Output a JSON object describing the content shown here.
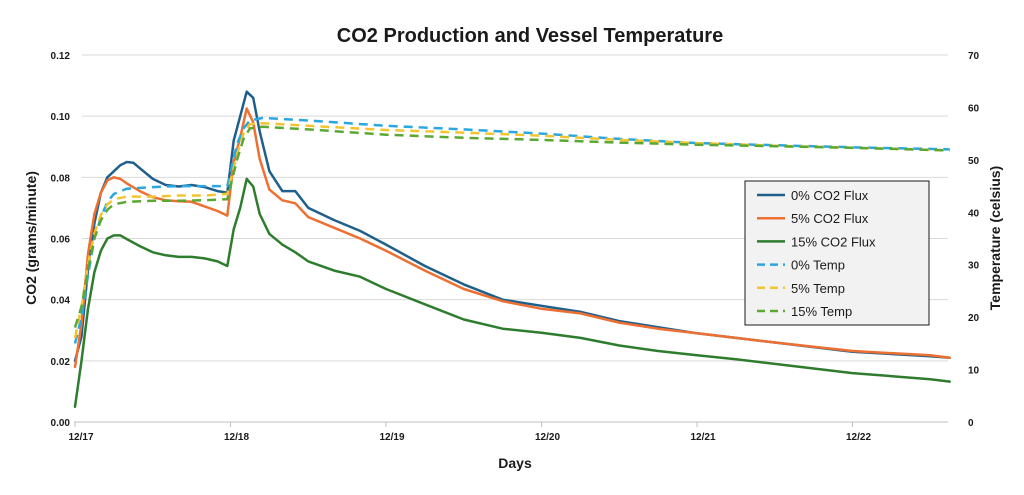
{
  "chart_data": {
    "type": "line",
    "title": "CO2 Production and Vessel Temperature",
    "xlabel": "Days",
    "ylabel": "CO2 (grams/minute)",
    "y2label": "Temperature (celsius)",
    "x_ticks": [
      "12/17",
      "12/18",
      "12/19",
      "12/20",
      "12/21",
      "12/22"
    ],
    "y_ticks": [
      "0.00",
      "0.02",
      "0.04",
      "0.06",
      "0.08",
      "0.10",
      "0.12"
    ],
    "y2_ticks": [
      "0",
      "10",
      "20",
      "30",
      "40",
      "50",
      "60",
      "70"
    ],
    "xlim": [
      "12/17 00:00",
      "12/22 15:00"
    ],
    "ylim": [
      0,
      0.12
    ],
    "y2lim": [
      0,
      70
    ],
    "grid": "horizontal",
    "legend_position": "right",
    "series": [
      {
        "name": "0% CO2 Flux",
        "axis": "left",
        "style": "solid",
        "color": "#1f5f8b",
        "points": [
          [
            "12/17 00:00",
            0.02
          ],
          [
            "12/17 01:00",
            0.028
          ],
          [
            "12/17 02:00",
            0.05
          ],
          [
            "12/17 03:00",
            0.065
          ],
          [
            "12/17 04:00",
            0.075
          ],
          [
            "12/17 05:00",
            0.08
          ],
          [
            "12/17 06:00",
            0.082
          ],
          [
            "12/17 07:00",
            0.084
          ],
          [
            "12/17 08:00",
            0.085
          ],
          [
            "12/17 09:00",
            0.0848
          ],
          [
            "12/17 10:00",
            0.083
          ],
          [
            "12/17 12:00",
            0.0795
          ],
          [
            "12/17 14:00",
            0.0775
          ],
          [
            "12/17 16:00",
            0.077
          ],
          [
            "12/17 18:00",
            0.0775
          ],
          [
            "12/17 20:00",
            0.0768
          ],
          [
            "12/17 22:00",
            0.0755
          ],
          [
            "12/17 23:30",
            0.075
          ],
          [
            "12/18 00:30",
            0.092
          ],
          [
            "12/18 01:30",
            0.1
          ],
          [
            "12/18 02:30",
            0.108
          ],
          [
            "12/18 03:30",
            0.106
          ],
          [
            "12/18 04:30",
            0.095
          ],
          [
            "12/18 06:00",
            0.082
          ],
          [
            "12/18 08:00",
            0.0755
          ],
          [
            "12/18 10:00",
            0.0755
          ],
          [
            "12/18 12:00",
            0.07
          ],
          [
            "12/18 16:00",
            0.066
          ],
          [
            "12/18 20:00",
            0.0625
          ],
          [
            "12/19 00:00",
            0.058
          ],
          [
            "12/19 06:00",
            0.051
          ],
          [
            "12/19 12:00",
            0.045
          ],
          [
            "12/19 18:00",
            0.04
          ],
          [
            "12/20 00:00",
            0.038
          ],
          [
            "12/20 06:00",
            0.036
          ],
          [
            "12/20 12:00",
            0.033
          ],
          [
            "12/20 18:00",
            0.031
          ],
          [
            "12/21 00:00",
            0.029
          ],
          [
            "12/21 06:00",
            0.0275
          ],
          [
            "12/21 12:00",
            0.026
          ],
          [
            "12/22 00:00",
            0.023
          ],
          [
            "12/22 12:00",
            0.0215
          ],
          [
            "12/22 15:00",
            0.021
          ]
        ]
      },
      {
        "name": "5% CO2 Flux",
        "axis": "left",
        "style": "solid",
        "color": "#ed7032",
        "points": [
          [
            "12/17 00:00",
            0.018
          ],
          [
            "12/17 01:00",
            0.032
          ],
          [
            "12/17 02:00",
            0.055
          ],
          [
            "12/17 03:00",
            0.068
          ],
          [
            "12/17 04:00",
            0.075
          ],
          [
            "12/17 05:00",
            0.079
          ],
          [
            "12/17 06:00",
            0.08
          ],
          [
            "12/17 07:00",
            0.0795
          ],
          [
            "12/17 08:00",
            0.078
          ],
          [
            "12/17 10:00",
            0.0755
          ],
          [
            "12/17 12:00",
            0.0735
          ],
          [
            "12/17 14:00",
            0.0725
          ],
          [
            "12/17 16:00",
            0.0722
          ],
          [
            "12/17 18:00",
            0.072
          ],
          [
            "12/17 20:00",
            0.0705
          ],
          [
            "12/17 22:00",
            0.069
          ],
          [
            "12/17 23:30",
            0.0675
          ],
          [
            "12/18 00:30",
            0.085
          ],
          [
            "12/18 01:30",
            0.093
          ],
          [
            "12/18 02:30",
            0.1025
          ],
          [
            "12/18 03:30",
            0.098
          ],
          [
            "12/18 04:30",
            0.086
          ],
          [
            "12/18 06:00",
            0.076
          ],
          [
            "12/18 08:00",
            0.0725
          ],
          [
            "12/18 10:00",
            0.0715
          ],
          [
            "12/18 12:00",
            0.067
          ],
          [
            "12/18 16:00",
            0.0635
          ],
          [
            "12/18 20:00",
            0.06
          ],
          [
            "12/19 00:00",
            0.056
          ],
          [
            "12/19 06:00",
            0.0495
          ],
          [
            "12/19 12:00",
            0.0435
          ],
          [
            "12/19 18:00",
            0.0395
          ],
          [
            "12/20 00:00",
            0.037
          ],
          [
            "12/20 06:00",
            0.0355
          ],
          [
            "12/20 12:00",
            0.0325
          ],
          [
            "12/20 18:00",
            0.0305
          ],
          [
            "12/21 00:00",
            0.029
          ],
          [
            "12/21 06:00",
            0.0275
          ],
          [
            "12/21 12:00",
            0.026
          ],
          [
            "12/22 00:00",
            0.0232
          ],
          [
            "12/22 12:00",
            0.0218
          ],
          [
            "12/22 15:00",
            0.021
          ]
        ]
      },
      {
        "name": "15% CO2 Flux",
        "axis": "left",
        "style": "solid",
        "color": "#2e7d2e",
        "points": [
          [
            "12/17 00:00",
            0.005
          ],
          [
            "12/17 01:00",
            0.02
          ],
          [
            "12/17 02:00",
            0.037
          ],
          [
            "12/17 03:00",
            0.049
          ],
          [
            "12/17 04:00",
            0.056
          ],
          [
            "12/17 05:00",
            0.06
          ],
          [
            "12/17 06:00",
            0.061
          ],
          [
            "12/17 07:00",
            0.061
          ],
          [
            "12/17 08:00",
            0.0598
          ],
          [
            "12/17 10:00",
            0.0575
          ],
          [
            "12/17 12:00",
            0.0555
          ],
          [
            "12/17 14:00",
            0.0545
          ],
          [
            "12/17 16:00",
            0.054
          ],
          [
            "12/17 18:00",
            0.054
          ],
          [
            "12/17 20:00",
            0.0535
          ],
          [
            "12/17 22:00",
            0.0525
          ],
          [
            "12/17 23:30",
            0.051
          ],
          [
            "12/18 00:30",
            0.063
          ],
          [
            "12/18 01:30",
            0.07
          ],
          [
            "12/18 02:30",
            0.0795
          ],
          [
            "12/18 03:30",
            0.077
          ],
          [
            "12/18 04:30",
            0.068
          ],
          [
            "12/18 06:00",
            0.0615
          ],
          [
            "12/18 08:00",
            0.058
          ],
          [
            "12/18 10:00",
            0.0555
          ],
          [
            "12/18 12:00",
            0.0525
          ],
          [
            "12/18 16:00",
            0.0495
          ],
          [
            "12/18 20:00",
            0.0475
          ],
          [
            "12/19 00:00",
            0.0435
          ],
          [
            "12/19 06:00",
            0.0385
          ],
          [
            "12/19 12:00",
            0.0335
          ],
          [
            "12/19 18:00",
            0.0305
          ],
          [
            "12/20 00:00",
            0.0292
          ],
          [
            "12/20 06:00",
            0.0275
          ],
          [
            "12/20 12:00",
            0.025
          ],
          [
            "12/20 18:00",
            0.0232
          ],
          [
            "12/21 00:00",
            0.0218
          ],
          [
            "12/21 06:00",
            0.0205
          ],
          [
            "12/21 12:00",
            0.019
          ],
          [
            "12/22 00:00",
            0.016
          ],
          [
            "12/22 12:00",
            0.014
          ],
          [
            "12/22 15:00",
            0.0132
          ]
        ]
      },
      {
        "name": "0% Temp",
        "axis": "right",
        "style": "dashed",
        "color": "#2aa7e0",
        "points": [
          [
            "12/17 00:00",
            15
          ],
          [
            "12/17 01:00",
            20
          ],
          [
            "12/17 02:00",
            28
          ],
          [
            "12/17 03:00",
            35
          ],
          [
            "12/17 04:00",
            39
          ],
          [
            "12/17 05:00",
            42
          ],
          [
            "12/17 06:00",
            43.5
          ],
          [
            "12/17 08:00",
            44.5
          ],
          [
            "12/17 12:00",
            44.8
          ],
          [
            "12/17 16:00",
            45
          ],
          [
            "12/17 20:00",
            45
          ],
          [
            "12/17 23:30",
            45
          ],
          [
            "12/18 01:00",
            53
          ],
          [
            "12/18 02:00",
            56
          ],
          [
            "12/18 03:00",
            57.5
          ],
          [
            "12/18 05:00",
            58
          ],
          [
            "12/18 12:00",
            57.5
          ],
          [
            "12/19 00:00",
            56.5
          ],
          [
            "12/19 12:00",
            55.8
          ],
          [
            "12/20 00:00",
            55
          ],
          [
            "12/20 12:00",
            54
          ],
          [
            "12/21 00:00",
            53.2
          ],
          [
            "12/21 12:00",
            52.8
          ],
          [
            "12/22 00:00",
            52.4
          ],
          [
            "12/22 15:00",
            52
          ]
        ]
      },
      {
        "name": "5% Temp",
        "axis": "right",
        "style": "dashed",
        "color": "#f4c430",
        "points": [
          [
            "12/17 00:00",
            16
          ],
          [
            "12/17 01:00",
            22
          ],
          [
            "12/17 02:00",
            30
          ],
          [
            "12/17 03:00",
            36
          ],
          [
            "12/17 04:00",
            39.5
          ],
          [
            "12/17 05:00",
            41.5
          ],
          [
            "12/17 06:00",
            42.5
          ],
          [
            "12/17 08:00",
            43
          ],
          [
            "12/17 12:00",
            43
          ],
          [
            "12/17 16:00",
            43.2
          ],
          [
            "12/17 20:00",
            43.2
          ],
          [
            "12/17 23:30",
            43.5
          ],
          [
            "12/18 01:00",
            51
          ],
          [
            "12/18 02:00",
            55
          ],
          [
            "12/18 03:00",
            56.8
          ],
          [
            "12/18 05:00",
            57
          ],
          [
            "12/18 12:00",
            56.5
          ],
          [
            "12/19 00:00",
            55.7
          ],
          [
            "12/19 12:00",
            55.2
          ],
          [
            "12/20 00:00",
            54.6
          ],
          [
            "12/20 12:00",
            53.8
          ],
          [
            "12/21 00:00",
            53.2
          ],
          [
            "12/21 12:00",
            52.7
          ],
          [
            "12/22 00:00",
            52.3
          ],
          [
            "12/22 15:00",
            51.8
          ]
        ]
      },
      {
        "name": "15% Temp",
        "axis": "right",
        "style": "dashed",
        "color": "#5aa832",
        "points": [
          [
            "12/17 00:00",
            18
          ],
          [
            "12/17 01:00",
            22
          ],
          [
            "12/17 02:00",
            29
          ],
          [
            "12/17 03:00",
            35
          ],
          [
            "12/17 04:00",
            38.5
          ],
          [
            "12/17 05:00",
            40.5
          ],
          [
            "12/17 06:00",
            41.5
          ],
          [
            "12/17 08:00",
            42
          ],
          [
            "12/17 12:00",
            42.2
          ],
          [
            "12/17 16:00",
            42.2
          ],
          [
            "12/17 20:00",
            42.3
          ],
          [
            "12/17 23:30",
            42.5
          ],
          [
            "12/18 01:00",
            50
          ],
          [
            "12/18 02:00",
            54
          ],
          [
            "12/18 03:00",
            56
          ],
          [
            "12/18 05:00",
            56.3
          ],
          [
            "12/18 12:00",
            55.8
          ],
          [
            "12/19 00:00",
            54.8
          ],
          [
            "12/19 12:00",
            54.2
          ],
          [
            "12/20 00:00",
            53.8
          ],
          [
            "12/20 12:00",
            53.3
          ],
          [
            "12/21 00:00",
            52.9
          ],
          [
            "12/21 12:00",
            52.6
          ],
          [
            "12/22 00:00",
            52.3
          ],
          [
            "12/22 15:00",
            51.8
          ]
        ]
      }
    ]
  }
}
